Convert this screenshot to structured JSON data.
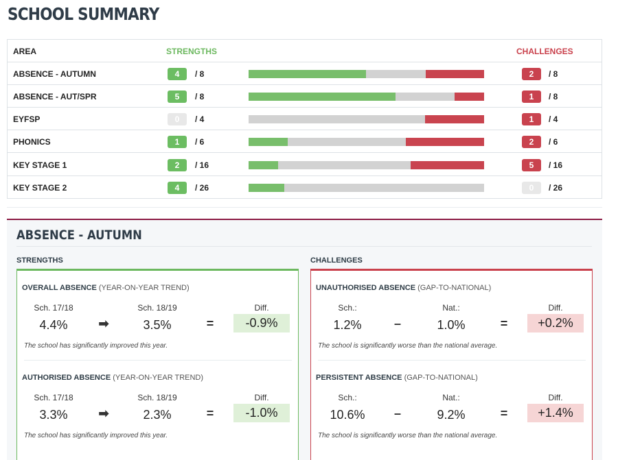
{
  "page_title": "SCHOOL SUMMARY",
  "summary": {
    "headers": {
      "area": "AREA",
      "strengths": "STRENGTHS",
      "challenges": "CHALLENGES"
    },
    "rows": [
      {
        "area": "ABSENCE - AUTUMN",
        "strengths": "4",
        "strengths_total": "/ 8",
        "challenges": "2",
        "challenges_total": "/ 8"
      },
      {
        "area": "ABSENCE - AUT/SPR",
        "strengths": "5",
        "strengths_total": "/ 8",
        "challenges": "1",
        "challenges_total": "/ 8"
      },
      {
        "area": "EYFSP",
        "strengths": "0",
        "strengths_total": "/ 4",
        "challenges": "1",
        "challenges_total": "/ 4"
      },
      {
        "area": "PHONICS",
        "strengths": "1",
        "strengths_total": "/ 6",
        "challenges": "2",
        "challenges_total": "/ 6"
      },
      {
        "area": "KEY STAGE 1",
        "strengths": "2",
        "strengths_total": "/ 16",
        "challenges": "5",
        "challenges_total": "/ 16"
      },
      {
        "area": "KEY STAGE 2",
        "strengths": "4",
        "strengths_total": "/ 26",
        "challenges": "0",
        "challenges_total": "/ 26"
      }
    ]
  },
  "colors": {
    "strength": "#6cb85f",
    "challenge": "#c9414c",
    "neutral": "#d2d2d2",
    "accent": "#8c1a43"
  },
  "detail": {
    "title": "ABSENCE - AUTUMN",
    "strengths": {
      "label": "STRENGTHS",
      "metrics": [
        {
          "title": "OVERALL ABSENCE",
          "subtitle": "(YEAR-ON-YEAR TREND)",
          "col1_label": "Sch. 17/18",
          "col1_value": "4.4%",
          "operator": "arrow-right-icon",
          "col2_label": "Sch. 18/19",
          "col2_value": "3.5%",
          "equals": "=",
          "diff_label": "Diff.",
          "diff_value": "-0.9%",
          "note": "The school has significantly improved this year."
        },
        {
          "title": "AUTHORISED ABSENCE",
          "subtitle": "(YEAR-ON-YEAR TREND)",
          "col1_label": "Sch. 17/18",
          "col1_value": "3.3%",
          "operator": "arrow-right-icon",
          "col2_label": "Sch. 18/19",
          "col2_value": "2.3%",
          "equals": "=",
          "diff_label": "Diff.",
          "diff_value": "-1.0%",
          "note": "The school has significantly improved this year."
        }
      ]
    },
    "challenges": {
      "label": "CHALLENGES",
      "metrics": [
        {
          "title": "UNAUTHORISED ABSENCE",
          "subtitle": "(GAP-TO-NATIONAL)",
          "col1_label": "Sch.:",
          "col1_value": "1.2%",
          "operator": "–",
          "col2_label": "Nat.:",
          "col2_value": "1.0%",
          "equals": "=",
          "diff_label": "Diff.",
          "diff_value": "+0.2%",
          "note": "The school is significantly worse than the national average."
        },
        {
          "title": "PERSISTENT ABSENCE",
          "subtitle": "(GAP-TO-NATIONAL)",
          "col1_label": "Sch.:",
          "col1_value": "10.6%",
          "operator": "–",
          "col2_label": "Nat.:",
          "col2_value": "9.2%",
          "equals": "=",
          "diff_label": "Diff.",
          "diff_value": "+1.4%",
          "note": "The school is significantly worse than the national average."
        }
      ]
    }
  }
}
